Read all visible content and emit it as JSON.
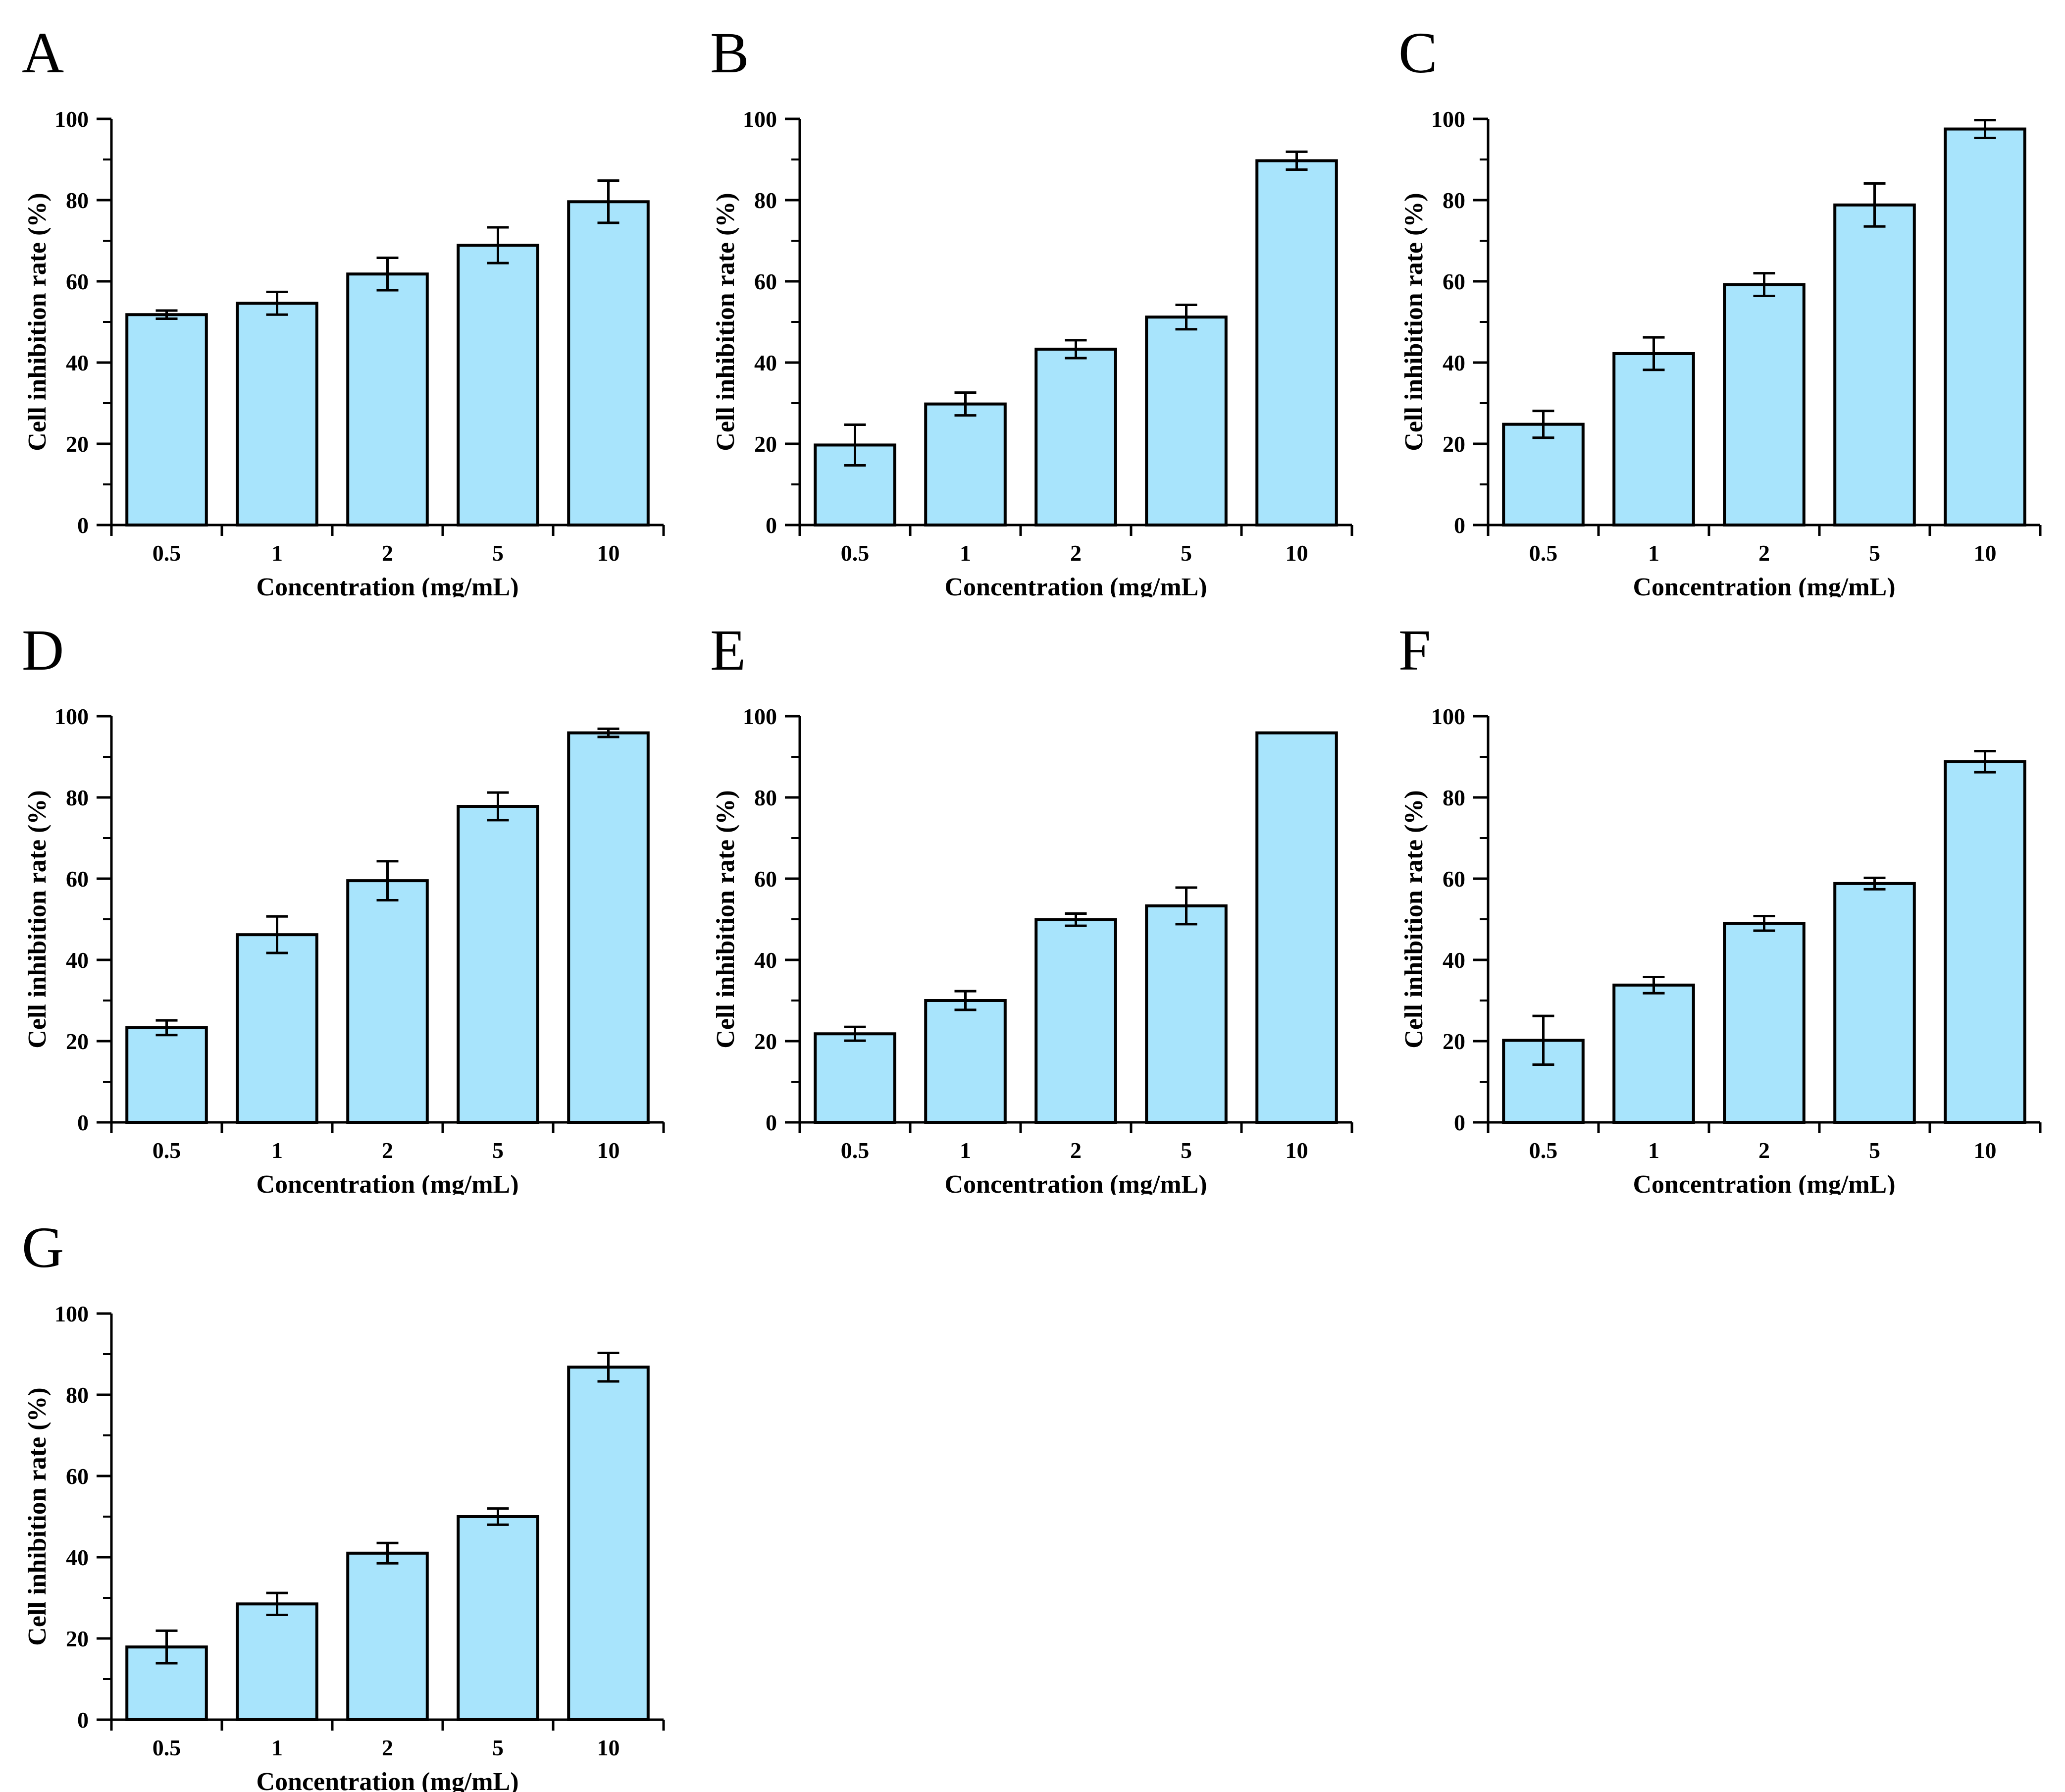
{
  "style": {
    "background": "#ffffff",
    "bar_fill": "#A8E4FC",
    "bar_stroke": "#000000",
    "axis_color": "#000000",
    "error_bar_color": "#000000"
  },
  "chart_data": [
    {
      "panel": "A",
      "type": "bar",
      "categories": [
        "0.5",
        "1",
        "2",
        "5",
        "10"
      ],
      "values": [
        51.8,
        54.6,
        61.8,
        68.9,
        79.6
      ],
      "errors": [
        1.0,
        2.8,
        4.0,
        4.4,
        5.2
      ],
      "xlabel": "Concentration (mg/mL)",
      "ylabel": "Cell inhibition rate (%)",
      "ylim": [
        0,
        100
      ],
      "yticks": [
        0,
        20,
        40,
        60,
        80,
        100
      ],
      "yminor": [
        10,
        30,
        50,
        70,
        90
      ],
      "grid": false,
      "legend": null
    },
    {
      "panel": "B",
      "type": "bar",
      "categories": [
        "0.5",
        "1",
        "2",
        "5",
        "10"
      ],
      "values": [
        19.7,
        29.8,
        43.3,
        51.2,
        89.7
      ],
      "errors": [
        5.0,
        2.8,
        2.2,
        3.0,
        2.2
      ],
      "xlabel": "Concentration (mg/mL)",
      "ylabel": "Cell inhibition rate (%)",
      "ylim": [
        0,
        100
      ],
      "yticks": [
        0,
        20,
        40,
        60,
        80,
        100
      ],
      "yminor": [
        10,
        30,
        50,
        70,
        90
      ],
      "grid": false,
      "legend": null
    },
    {
      "panel": "C",
      "type": "bar",
      "categories": [
        "0.5",
        "1",
        "2",
        "5",
        "10"
      ],
      "values": [
        24.8,
        42.2,
        59.2,
        78.8,
        97.5
      ],
      "errors": [
        3.3,
        4.0,
        2.8,
        5.3,
        2.2
      ],
      "xlabel": "Concentration (mg/mL)",
      "ylabel": "Cell inhibition rate (%)",
      "ylim": [
        0,
        100
      ],
      "yticks": [
        0,
        20,
        40,
        60,
        80,
        100
      ],
      "yminor": [
        10,
        30,
        50,
        70,
        90
      ],
      "grid": false,
      "legend": null
    },
    {
      "panel": "D",
      "type": "bar",
      "categories": [
        "0.5",
        "1",
        "2",
        "5",
        "10"
      ],
      "values": [
        23.3,
        46.2,
        59.5,
        77.8,
        95.9
      ],
      "errors": [
        1.8,
        4.5,
        4.8,
        3.4,
        1.0
      ],
      "xlabel": "Concentration (mg/mL)",
      "ylabel": "Cell inhibition rate (%)",
      "ylim": [
        0,
        100
      ],
      "yticks": [
        0,
        20,
        40,
        60,
        80,
        100
      ],
      "yminor": [
        10,
        30,
        50,
        70,
        90
      ],
      "grid": false,
      "legend": null
    },
    {
      "panel": "E",
      "type": "bar",
      "categories": [
        "0.5",
        "1",
        "2",
        "5",
        "10"
      ],
      "values": [
        21.8,
        30.0,
        49.9,
        53.3,
        95.9
      ],
      "errors": [
        1.7,
        2.3,
        1.5,
        4.5,
        0
      ],
      "xlabel": "Concentration (mg/mL)",
      "ylabel": "Cell inhibition rate (%)",
      "ylim": [
        0,
        100
      ],
      "yticks": [
        0,
        20,
        40,
        60,
        80,
        100
      ],
      "yminor": [
        10,
        30,
        50,
        70,
        90
      ],
      "grid": false,
      "legend": null
    },
    {
      "panel": "F",
      "type": "bar",
      "categories": [
        "0.5",
        "1",
        "2",
        "5",
        "10"
      ],
      "values": [
        20.2,
        33.8,
        49.0,
        58.8,
        88.8
      ],
      "errors": [
        6.0,
        2.0,
        1.8,
        1.4,
        2.6
      ],
      "xlabel": "Concentration (mg/mL)",
      "ylabel": "Cell inhibition rate (%)",
      "ylim": [
        0,
        100
      ],
      "yticks": [
        0,
        20,
        40,
        60,
        80,
        100
      ],
      "yminor": [
        10,
        30,
        50,
        70,
        90
      ],
      "grid": false,
      "legend": null
    },
    {
      "panel": "G",
      "type": "bar",
      "categories": [
        "0.5",
        "1",
        "2",
        "5",
        "10"
      ],
      "values": [
        17.9,
        28.5,
        41.0,
        50.0,
        86.8
      ],
      "errors": [
        4.0,
        2.7,
        2.5,
        2.0,
        3.5
      ],
      "xlabel": "Concentration (mg/mL)",
      "ylabel": "Cell inhibition rate (%)",
      "ylim": [
        0,
        100
      ],
      "yticks": [
        0,
        20,
        40,
        60,
        80,
        100
      ],
      "yminor": [
        10,
        30,
        50,
        70,
        90
      ],
      "grid": false,
      "legend": null
    }
  ]
}
